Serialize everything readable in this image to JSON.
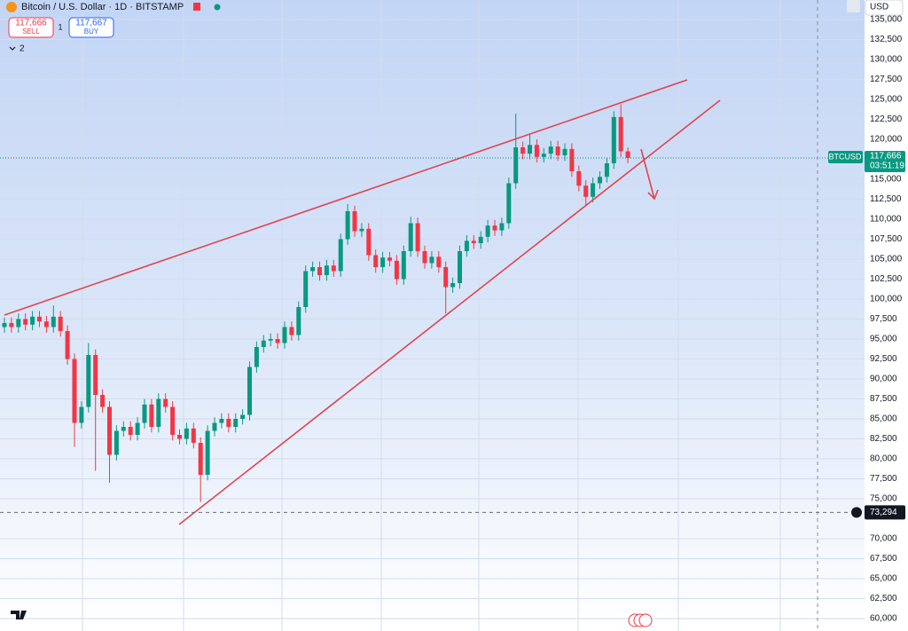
{
  "header": {
    "title": "Bitcoin / U.S. Dollar · 1D · BITSTAMP",
    "sell_price": "117,666",
    "sell_label": "SELL",
    "spread": "1",
    "buy_price": "117,667",
    "buy_label": "BUY",
    "indicators": "2",
    "currency": "USD",
    "symbol": "BTCUSD",
    "countdown": "03:51:19"
  },
  "chart_data": {
    "type": "candlestick",
    "up_color": "#089981",
    "down_color": "#f23645",
    "open": [
      96500,
      97000,
      96500,
      97500,
      96800,
      97800,
      97200,
      96500,
      97800,
      96000,
      92500,
      84500,
      86500,
      93000,
      88000,
      86500,
      80500,
      83500,
      84000,
      83000,
      84500,
      86800,
      84000,
      87500,
      86500,
      83000,
      82500,
      83800,
      82000,
      78000,
      83500,
      84500,
      85000,
      84000,
      85000,
      85500,
      91500,
      94000,
      94800,
      95000,
      94500,
      96500,
      95500,
      99000,
      103500,
      104000,
      103000,
      104200,
      103500,
      107500,
      111000,
      108500,
      108800,
      105500,
      104000,
      105200,
      104800,
      102500,
      106000,
      109500,
      106000,
      104500,
      105300,
      104000,
      101500,
      102000,
      106000,
      107300,
      107000,
      107800,
      109200,
      108600,
      109500,
      114500,
      119000,
      118200,
      119300,
      117800,
      118200,
      119100,
      118000,
      118800,
      116000,
      114200,
      112800,
      114500,
      115300,
      117000,
      122800,
      118500
    ],
    "high": [
      97700,
      97700,
      98200,
      98200,
      98500,
      98500,
      97900,
      99200,
      98500,
      96700,
      93200,
      87200,
      94500,
      93700,
      88700,
      87200,
      84200,
      84700,
      84700,
      85200,
      87500,
      87500,
      88200,
      88200,
      87200,
      83700,
      84500,
      84500,
      82700,
      84200,
      85200,
      85700,
      85700,
      85700,
      86200,
      92200,
      94700,
      95500,
      95700,
      95700,
      97200,
      97200,
      99700,
      104200,
      104700,
      104700,
      104900,
      104900,
      108200,
      111900,
      111700,
      109500,
      109500,
      106200,
      105900,
      105900,
      105500,
      106700,
      110300,
      110200,
      106700,
      106000,
      106000,
      104700,
      102700,
      106700,
      108000,
      108000,
      108500,
      109900,
      109900,
      110200,
      115200,
      123200,
      119700,
      120700,
      120000,
      118900,
      119800,
      119800,
      119500,
      119500,
      116700,
      114900,
      115200,
      116000,
      117700,
      123500,
      124400,
      119000
    ],
    "low": [
      95800,
      95800,
      95800,
      96100,
      96100,
      96500,
      95800,
      95800,
      95300,
      91800,
      81500,
      83800,
      85800,
      78500,
      85800,
      77000,
      79800,
      82800,
      82300,
      82300,
      83800,
      83300,
      83300,
      85800,
      82300,
      81800,
      81800,
      81300,
      74600,
      77300,
      82800,
      83800,
      83300,
      83300,
      84300,
      84800,
      90800,
      93300,
      94100,
      93800,
      93800,
      94800,
      94800,
      98300,
      102800,
      102300,
      102300,
      102800,
      102800,
      106800,
      107800,
      107800,
      104800,
      103300,
      103300,
      104100,
      101800,
      101800,
      105300,
      105300,
      103800,
      103800,
      103300,
      98200,
      100800,
      101300,
      105300,
      106300,
      106300,
      107100,
      107900,
      107900,
      108800,
      113800,
      117500,
      117500,
      117100,
      117100,
      117500,
      117300,
      117300,
      115300,
      113500,
      111800,
      112100,
      113800,
      114600,
      116300,
      117800,
      117000
    ],
    "close": [
      97000,
      96500,
      97500,
      96800,
      97800,
      97200,
      96500,
      97800,
      96000,
      92500,
      84500,
      86500,
      93000,
      88000,
      86500,
      80500,
      83500,
      84000,
      83000,
      84500,
      86800,
      84000,
      87500,
      86500,
      83000,
      82500,
      83800,
      82000,
      78000,
      83500,
      84500,
      85000,
      84000,
      85000,
      85500,
      91500,
      94000,
      94800,
      95000,
      94500,
      96500,
      95500,
      99000,
      103500,
      104000,
      103000,
      104200,
      103500,
      107500,
      111000,
      108500,
      108800,
      105500,
      104000,
      105200,
      104800,
      102500,
      106000,
      109500,
      106000,
      104500,
      105300,
      104000,
      101500,
      102000,
      106000,
      107300,
      107000,
      107800,
      109200,
      108600,
      109500,
      114500,
      119000,
      118200,
      119300,
      117800,
      118200,
      119100,
      118000,
      118800,
      116000,
      114200,
      112800,
      114500,
      115300,
      117000,
      122800,
      118500,
      117666
    ],
    "ylim": [
      58444,
      137444
    ],
    "yticks": [
      {
        "value": 60000,
        "label": "60,000"
      },
      {
        "value": 62500,
        "label": "62,500"
      },
      {
        "value": 65000,
        "label": "65,000"
      },
      {
        "value": 67500,
        "label": "67,500"
      },
      {
        "value": 70000,
        "label": "70,000"
      },
      {
        "value": 75000,
        "label": "75,000"
      },
      {
        "value": 77500,
        "label": "77,500"
      },
      {
        "value": 80000,
        "label": "80,000"
      },
      {
        "value": 82500,
        "label": "82,500"
      },
      {
        "value": 85000,
        "label": "85,000"
      },
      {
        "value": 87500,
        "label": "87,500"
      },
      {
        "value": 90000,
        "label": "90,000"
      },
      {
        "value": 92500,
        "label": "92,500"
      },
      {
        "value": 95000,
        "label": "95,000"
      },
      {
        "value": 97500,
        "label": "97,500"
      },
      {
        "value": 100000,
        "label": "100,000"
      },
      {
        "value": 102500,
        "label": "102,500"
      },
      {
        "value": 105000,
        "label": "105,000"
      },
      {
        "value": 107500,
        "label": "107,500"
      },
      {
        "value": 110000,
        "label": "110,000"
      },
      {
        "value": 112500,
        "label": "112,500"
      },
      {
        "value": 115000,
        "label": "115,000"
      },
      {
        "value": 120000,
        "label": "120,000"
      },
      {
        "value": 122500,
        "label": "122,500"
      },
      {
        "value": 125000,
        "label": "125,000"
      },
      {
        "value": 127500,
        "label": "127,500"
      },
      {
        "value": 130000,
        "label": "130,000"
      },
      {
        "value": 132500,
        "label": "132,500"
      },
      {
        "value": 135000,
        "label": "135,000"
      }
    ],
    "grid": true,
    "last_price": {
      "value": 117666,
      "label": "117,666"
    },
    "crosshair_price": {
      "value": 73294,
      "label": "73,294"
    }
  }
}
